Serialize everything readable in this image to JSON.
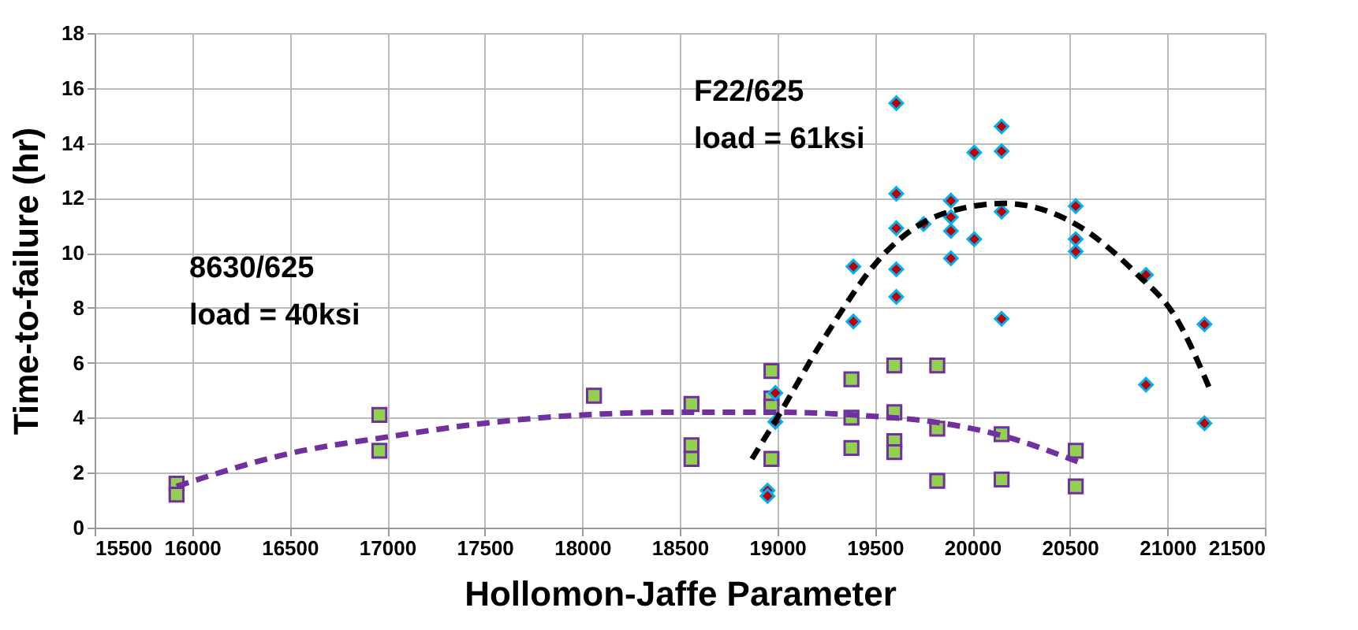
{
  "chart_data": {
    "type": "scatter",
    "xlabel": "Hollomon-Jaffe Parameter",
    "ylabel": "Time-to-failure (hr)",
    "xlim": [
      15500,
      21500
    ],
    "xticks": [
      15500,
      16000,
      16500,
      17000,
      17500,
      18000,
      18500,
      19000,
      19500,
      20000,
      20500,
      21000,
      21500
    ],
    "ylim": [
      0,
      18
    ],
    "yticks": [
      0,
      2,
      4,
      6,
      8,
      10,
      12,
      14,
      16,
      18
    ],
    "grid": true,
    "series": [
      {
        "marker": "square",
        "color": "#92d050",
        "x": [
          15920,
          15920,
          16960,
          16960,
          18060,
          18560,
          18560,
          18560,
          18970,
          18970,
          18970,
          18970,
          19380,
          19380,
          19380,
          19600,
          19600,
          19600,
          19600,
          19820,
          19820,
          19820,
          20150,
          20150,
          20530,
          20530
        ],
        "values": [
          1.6,
          1.2,
          4.1,
          2.8,
          4.8,
          4.5,
          3.0,
          2.5,
          5.7,
          4.7,
          4.4,
          2.5,
          5.4,
          4.0,
          2.9,
          5.9,
          4.2,
          3.15,
          2.75,
          5.9,
          3.6,
          1.7,
          3.4,
          1.75,
          2.8,
          1.5
        ]
      },
      {
        "marker": "diamond",
        "color": "#c00000",
        "x": [
          18950,
          18950,
          18990,
          18990,
          19390,
          19390,
          19610,
          19610,
          19610,
          19610,
          19610,
          19750,
          19890,
          19890,
          19890,
          19890,
          20010,
          20010,
          20150,
          20150,
          20150,
          20150,
          20530,
          20530,
          20530,
          20890,
          20890,
          21190,
          21190
        ],
        "values": [
          1.35,
          1.15,
          4.9,
          3.85,
          9.5,
          7.5,
          15.45,
          12.15,
          10.9,
          9.4,
          8.4,
          11.05,
          11.9,
          11.3,
          10.8,
          9.8,
          13.65,
          10.5,
          14.6,
          13.7,
          11.5,
          7.6,
          11.7,
          10.5,
          10.05,
          9.2,
          5.2,
          7.4,
          3.8
        ]
      },
      {
        "type": "line",
        "line_style": "dashed",
        "color": "#7030a0",
        "x": [
          15920,
          16500,
          17000,
          17500,
          18000,
          18500,
          19000,
          19500,
          19800,
          20150,
          20540
        ],
        "values": [
          1.5,
          2.7,
          3.3,
          3.8,
          4.1,
          4.2,
          4.2,
          4.05,
          3.85,
          3.35,
          2.4
        ]
      },
      {
        "type": "line",
        "line_style": "dashed",
        "color": "#000000",
        "x": [
          18870,
          19000,
          19232,
          19553,
          19840,
          20165,
          20540,
          20833,
          21047,
          21220
        ],
        "values": [
          2.5,
          4.0,
          6.8,
          10.0,
          11.4,
          11.8,
          11.0,
          9.3,
          7.6,
          5.0
        ]
      }
    ],
    "annotations": [
      "8630/625\nload = 40ksi",
      "F22/625\nload = 61ksi"
    ]
  }
}
